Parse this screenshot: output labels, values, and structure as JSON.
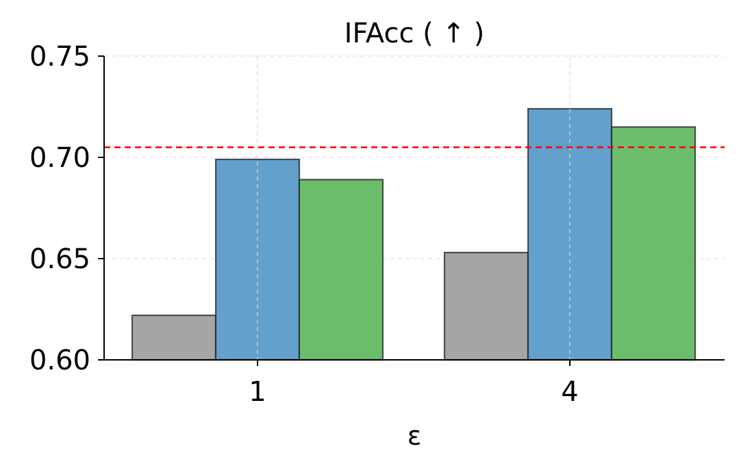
{
  "chart_data": {
    "type": "bar",
    "title": "IFAcc ( ↑ )",
    "xlabel": "ε",
    "ylabel": "",
    "categories": [
      "1",
      "4"
    ],
    "ylim": [
      0.6,
      0.75
    ],
    "yticks": [
      "0.60",
      "0.65",
      "0.70",
      "0.75"
    ],
    "grid": true,
    "legend": "none",
    "series": [
      {
        "values": [
          0.622,
          0.653
        ],
        "color": "#a5a5a5"
      },
      {
        "values": [
          0.699,
          0.724
        ],
        "color": "#63a0cb"
      },
      {
        "values": [
          0.689,
          0.715
        ],
        "color": "#6bbd6b"
      }
    ],
    "reference_line": {
      "value": 0.705,
      "color": "#ff0000",
      "style": "dashed"
    }
  }
}
